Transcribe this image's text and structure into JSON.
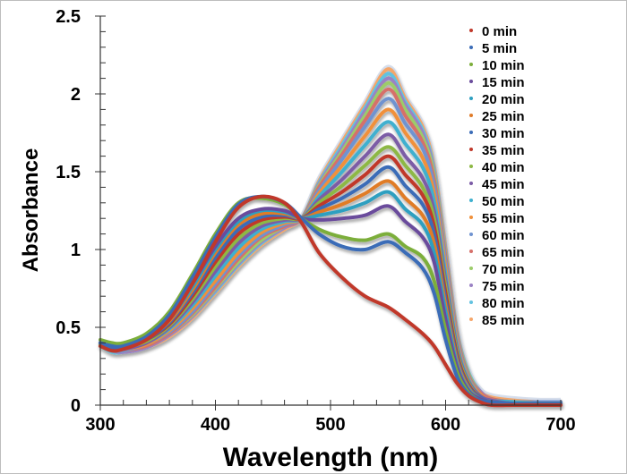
{
  "chart_data": {
    "type": "line",
    "title": "",
    "xlabel": "Wavelength (nm)",
    "ylabel": "Absorbance",
    "xlim": [
      300,
      700
    ],
    "ylim": [
      0,
      2.5
    ],
    "x_ticks": [
      "300",
      "400",
      "500",
      "600",
      "700"
    ],
    "y_ticks": [
      "0",
      "0.5",
      "1",
      "1.5",
      "2",
      "2.5"
    ],
    "grid": false,
    "legend_position": "top-right",
    "isosbestic_point": {
      "x": 475,
      "y": 1.2
    },
    "x": [
      300,
      310,
      320,
      340,
      360,
      380,
      400,
      420,
      440,
      460,
      475,
      490,
      510,
      530,
      550,
      565,
      580,
      590,
      600,
      610,
      620,
      630,
      640,
      660,
      680,
      700
    ],
    "series": [
      {
        "name": "0 min",
        "color": "#c0392b",
        "values": [
          0.38,
          0.35,
          0.36,
          0.42,
          0.55,
          0.78,
          1.05,
          1.27,
          1.34,
          1.3,
          1.17,
          0.98,
          0.82,
          0.7,
          0.63,
          0.55,
          0.46,
          0.38,
          0.26,
          0.14,
          0.06,
          0.02,
          0.0,
          0.0,
          0.0,
          0.0
        ]
      },
      {
        "name": "5 min",
        "color": "#3b6cb7",
        "values": [
          0.4,
          0.38,
          0.38,
          0.44,
          0.58,
          0.82,
          1.08,
          1.29,
          1.34,
          1.3,
          1.2,
          1.1,
          1.02,
          1.0,
          1.05,
          0.98,
          0.88,
          0.72,
          0.42,
          0.18,
          0.07,
          0.03,
          0.02,
          0.01,
          0.01,
          0.01
        ]
      },
      {
        "name": "10 min",
        "color": "#7cae3a",
        "values": [
          0.42,
          0.4,
          0.4,
          0.46,
          0.6,
          0.84,
          1.1,
          1.3,
          1.33,
          1.29,
          1.2,
          1.13,
          1.08,
          1.06,
          1.1,
          1.02,
          0.95,
          0.8,
          0.48,
          0.21,
          0.08,
          0.03,
          0.02,
          0.01,
          0.01,
          0.01
        ]
      },
      {
        "name": "15 min",
        "color": "#6a4c9c",
        "values": [
          0.4,
          0.38,
          0.38,
          0.44,
          0.56,
          0.78,
          1.02,
          1.2,
          1.26,
          1.25,
          1.2,
          1.19,
          1.2,
          1.22,
          1.28,
          1.18,
          1.08,
          0.92,
          0.55,
          0.24,
          0.09,
          0.04,
          0.02,
          0.01,
          0.01,
          0.01
        ]
      },
      {
        "name": "20 min",
        "color": "#2e9fc0",
        "values": [
          0.4,
          0.38,
          0.38,
          0.43,
          0.55,
          0.76,
          1.0,
          1.18,
          1.25,
          1.24,
          1.2,
          1.22,
          1.25,
          1.3,
          1.37,
          1.26,
          1.16,
          0.98,
          0.6,
          0.26,
          0.1,
          0.04,
          0.02,
          0.01,
          0.01,
          0.01
        ]
      },
      {
        "name": "25 min",
        "color": "#e07b28",
        "values": [
          0.4,
          0.38,
          0.38,
          0.43,
          0.54,
          0.74,
          0.98,
          1.16,
          1.23,
          1.23,
          1.2,
          1.24,
          1.29,
          1.36,
          1.44,
          1.33,
          1.22,
          1.04,
          0.64,
          0.28,
          0.11,
          0.04,
          0.02,
          0.01,
          0.01,
          0.01
        ]
      },
      {
        "name": "30 min",
        "color": "#3b6cb7",
        "values": [
          0.4,
          0.37,
          0.37,
          0.42,
          0.53,
          0.72,
          0.95,
          1.13,
          1.21,
          1.22,
          1.2,
          1.26,
          1.33,
          1.42,
          1.53,
          1.41,
          1.29,
          1.1,
          0.68,
          0.3,
          0.12,
          0.05,
          0.02,
          0.01,
          0.01,
          0.01
        ]
      },
      {
        "name": "35 min",
        "color": "#c0392b",
        "values": [
          0.4,
          0.37,
          0.37,
          0.42,
          0.52,
          0.7,
          0.92,
          1.1,
          1.19,
          1.21,
          1.2,
          1.28,
          1.37,
          1.48,
          1.6,
          1.48,
          1.35,
          1.15,
          0.72,
          0.32,
          0.13,
          0.05,
          0.02,
          0.01,
          0.01,
          0.01
        ]
      },
      {
        "name": "40 min",
        "color": "#8db844",
        "values": [
          0.39,
          0.37,
          0.37,
          0.41,
          0.51,
          0.68,
          0.89,
          1.07,
          1.17,
          1.2,
          1.2,
          1.3,
          1.41,
          1.54,
          1.66,
          1.54,
          1.4,
          1.2,
          0.76,
          0.34,
          0.14,
          0.05,
          0.02,
          0.01,
          0.01,
          0.01
        ]
      },
      {
        "name": "45 min",
        "color": "#7b5ba6",
        "values": [
          0.39,
          0.36,
          0.36,
          0.4,
          0.5,
          0.66,
          0.86,
          1.04,
          1.15,
          1.19,
          1.2,
          1.32,
          1.45,
          1.6,
          1.74,
          1.6,
          1.46,
          1.25,
          0.8,
          0.36,
          0.15,
          0.06,
          0.03,
          0.01,
          0.01,
          0.01
        ]
      },
      {
        "name": "50 min",
        "color": "#3fb0cf",
        "values": [
          0.39,
          0.36,
          0.36,
          0.4,
          0.49,
          0.64,
          0.83,
          1.01,
          1.13,
          1.18,
          1.2,
          1.34,
          1.5,
          1.67,
          1.82,
          1.68,
          1.53,
          1.31,
          0.84,
          0.38,
          0.16,
          0.06,
          0.03,
          0.02,
          0.01,
          0.01
        ]
      },
      {
        "name": "55 min",
        "color": "#f0903a",
        "values": [
          0.38,
          0.36,
          0.36,
          0.39,
          0.48,
          0.62,
          0.8,
          0.98,
          1.11,
          1.17,
          1.2,
          1.36,
          1.54,
          1.73,
          1.9,
          1.75,
          1.59,
          1.36,
          0.88,
          0.4,
          0.17,
          0.07,
          0.03,
          0.02,
          0.01,
          0.01
        ]
      },
      {
        "name": "60 min",
        "color": "#6f93d0",
        "values": [
          0.38,
          0.35,
          0.35,
          0.39,
          0.47,
          0.6,
          0.78,
          0.96,
          1.09,
          1.16,
          1.2,
          1.38,
          1.58,
          1.79,
          1.97,
          1.81,
          1.65,
          1.41,
          0.92,
          0.42,
          0.18,
          0.07,
          0.03,
          0.02,
          0.02,
          0.02
        ]
      },
      {
        "name": "65 min",
        "color": "#d6706a",
        "values": [
          0.38,
          0.35,
          0.35,
          0.38,
          0.46,
          0.59,
          0.76,
          0.94,
          1.08,
          1.15,
          1.2,
          1.4,
          1.61,
          1.83,
          2.03,
          1.86,
          1.69,
          1.45,
          0.95,
          0.44,
          0.19,
          0.08,
          0.04,
          0.02,
          0.02,
          0.02
        ]
      },
      {
        "name": "70 min",
        "color": "#9ccc6a",
        "values": [
          0.38,
          0.35,
          0.35,
          0.38,
          0.46,
          0.58,
          0.75,
          0.92,
          1.06,
          1.15,
          1.2,
          1.41,
          1.63,
          1.86,
          2.07,
          1.9,
          1.72,
          1.48,
          0.97,
          0.45,
          0.2,
          0.08,
          0.04,
          0.02,
          0.02,
          0.02
        ]
      },
      {
        "name": "75 min",
        "color": "#9a82c4",
        "values": [
          0.38,
          0.35,
          0.34,
          0.37,
          0.45,
          0.57,
          0.74,
          0.91,
          1.05,
          1.14,
          1.2,
          1.42,
          1.65,
          1.89,
          2.1,
          1.93,
          1.75,
          1.5,
          0.99,
          0.46,
          0.2,
          0.09,
          0.04,
          0.02,
          0.02,
          0.02
        ]
      },
      {
        "name": "80 min",
        "color": "#62c2e0",
        "values": [
          0.38,
          0.34,
          0.34,
          0.37,
          0.45,
          0.57,
          0.73,
          0.9,
          1.04,
          1.14,
          1.2,
          1.43,
          1.67,
          1.91,
          2.13,
          1.95,
          1.77,
          1.52,
          1.0,
          0.47,
          0.21,
          0.09,
          0.04,
          0.02,
          0.02,
          0.02
        ]
      },
      {
        "name": "85 min",
        "color": "#f5a66a",
        "values": [
          0.38,
          0.34,
          0.34,
          0.37,
          0.44,
          0.56,
          0.72,
          0.89,
          1.03,
          1.13,
          1.2,
          1.44,
          1.69,
          1.93,
          2.16,
          1.97,
          1.79,
          1.54,
          1.02,
          0.48,
          0.21,
          0.09,
          0.05,
          0.03,
          0.02,
          0.02
        ]
      }
    ]
  }
}
